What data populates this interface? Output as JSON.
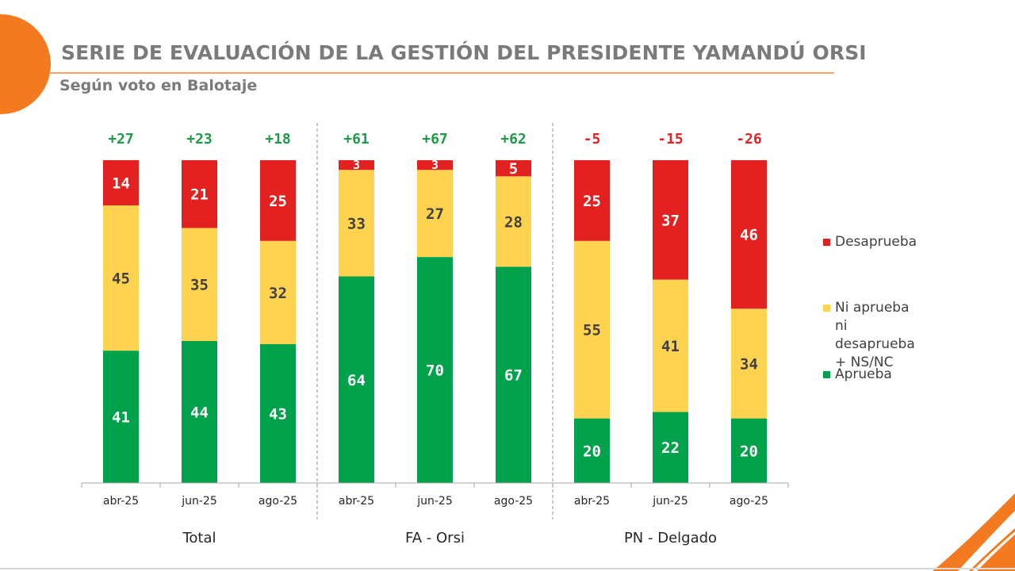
{
  "header": {
    "title": "SERIE DE EVALUACIÓN DE LA GESTIÓN DEL PRESIDENTE YAMANDÚ ORSI",
    "subtitle": "Según voto en Balotaje"
  },
  "colors": {
    "aprueba": "#00a14b",
    "neutral": "#ffd34f",
    "desaprueba": "#e42121",
    "net_positive": "#1f9a46",
    "net_negative": "#e42121",
    "accent": "#f47a20"
  },
  "legend": [
    {
      "key": "desaprueba",
      "label": "Desaprueba"
    },
    {
      "key": "neutral",
      "label": "Ni aprueba ni\ndesaprueba + NS/NC"
    },
    {
      "key": "aprueba",
      "label": "Aprueba"
    }
  ],
  "chart_data": {
    "type": "bar",
    "stacked": true,
    "normalized": true,
    "groups": [
      "Total",
      "FA - Orsi",
      "PN - Delgado"
    ],
    "categories": [
      "abr-25",
      "jun-25",
      "ago-25",
      "abr-25",
      "jun-25",
      "ago-25",
      "abr-25",
      "jun-25",
      "ago-25"
    ],
    "series": [
      {
        "name": "Aprueba",
        "key": "aprueba",
        "values": [
          41,
          44,
          43,
          64,
          70,
          67,
          20,
          22,
          20
        ]
      },
      {
        "name": "Ni aprueba ni desaprueba + NS/NC",
        "key": "neutral",
        "values": [
          45,
          35,
          32,
          33,
          27,
          28,
          55,
          41,
          34
        ]
      },
      {
        "name": "Desaprueba",
        "key": "desaprueba",
        "values": [
          14,
          21,
          25,
          3,
          3,
          5,
          25,
          37,
          46
        ]
      }
    ],
    "net": [
      "+27",
      "+23",
      "+18",
      "+61",
      "+67",
      "+62",
      "-5",
      "-15",
      "-26"
    ],
    "legend_position": "right",
    "grid": false
  }
}
